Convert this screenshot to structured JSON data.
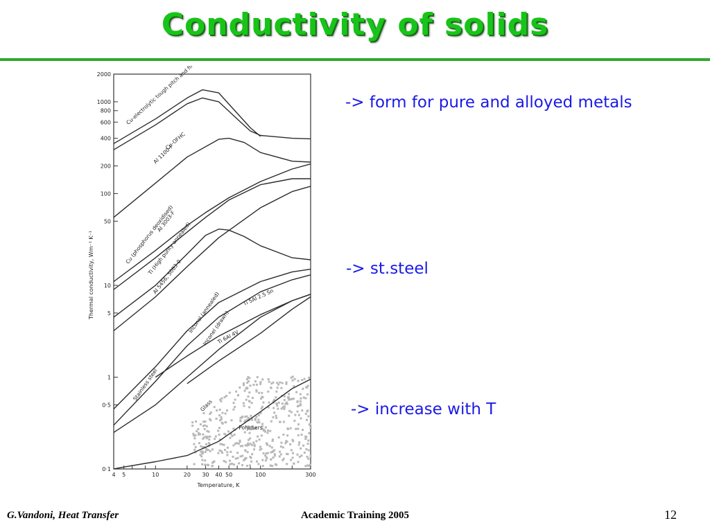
{
  "slide": {
    "title": "Conductivity of solids",
    "bullets": [
      "-> form for pure and alloyed metals",
      "-> st.steel",
      "-> increase with T"
    ],
    "footer_left": "G.Vandoni, Heat Transfer",
    "footer_center": "Academic Training 2005",
    "page_number": "12",
    "title_color": "#18c418",
    "accent_color": "#2ea82e",
    "bullet_color": "#1a1ae6"
  },
  "chart_data": {
    "type": "line",
    "xscale": "log",
    "yscale": "log",
    "xlabel": "Temperature, K",
    "ylabel": "Thermal conductivity, Wm⁻¹ K⁻¹",
    "xlim": [
      4,
      300
    ],
    "ylim": [
      0.1,
      2000
    ],
    "x_ticks": [
      {
        "v": 4,
        "label": "4"
      },
      {
        "v": 5,
        "label": "5"
      },
      {
        "v": 6,
        "label": ""
      },
      {
        "v": 8,
        "label": ""
      },
      {
        "v": 10,
        "label": "10"
      },
      {
        "v": 20,
        "label": "20"
      },
      {
        "v": 30,
        "label": "30"
      },
      {
        "v": 40,
        "label": "40"
      },
      {
        "v": 50,
        "label": "50"
      },
      {
        "v": 60,
        "label": ""
      },
      {
        "v": 80,
        "label": ""
      },
      {
        "v": 100,
        "label": "100"
      },
      {
        "v": 200,
        "label": ""
      },
      {
        "v": 300,
        "label": "300"
      }
    ],
    "y_ticks": [
      {
        "v": 0.1,
        "label": "0·1"
      },
      {
        "v": 0.5,
        "label": "0·5"
      },
      {
        "v": 1,
        "label": "1"
      },
      {
        "v": 5,
        "label": "5"
      },
      {
        "v": 10,
        "label": "10"
      },
      {
        "v": 50,
        "label": "50"
      },
      {
        "v": 100,
        "label": "100"
      },
      {
        "v": 200,
        "label": "200"
      },
      {
        "v": 400,
        "label": "400"
      },
      {
        "v": 600,
        "label": "600"
      },
      {
        "v": 800,
        "label": "800"
      },
      {
        "v": 1000,
        "label": "1000"
      },
      {
        "v": 2000,
        "label": "2000"
      }
    ],
    "series": [
      {
        "name": "Cu-electrolytic tough pitch and fire-refined",
        "x": [
          4,
          10,
          20,
          28,
          40,
          60,
          80,
          100
        ],
        "y": [
          350,
          650,
          1100,
          1350,
          1250,
          750,
          520,
          420
        ]
      },
      {
        "name": "Cu-OFHC",
        "x": [
          4,
          10,
          20,
          28,
          40,
          60,
          80,
          100,
          200,
          300
        ],
        "y": [
          300,
          560,
          950,
          1100,
          1000,
          650,
          480,
          430,
          400,
          395
        ]
      },
      {
        "name": "Al 1100-F",
        "x": [
          4,
          10,
          20,
          40,
          50,
          70,
          100,
          200,
          300
        ],
        "y": [
          55,
          130,
          250,
          390,
          400,
          360,
          280,
          225,
          220
        ]
      },
      {
        "name": "Al 3003-F",
        "x": [
          4,
          10,
          20,
          30,
          50,
          100,
          200,
          300
        ],
        "y": [
          11,
          24,
          45,
          62,
          90,
          135,
          185,
          210
        ]
      },
      {
        "name": "Cu (phosphorus deoxidised)",
        "x": [
          4,
          10,
          20,
          30,
          50,
          100,
          200,
          300
        ],
        "y": [
          9,
          20,
          38,
          55,
          85,
          125,
          145,
          145
        ]
      },
      {
        "name": "Ti (High purity annealed)",
        "x": [
          4,
          10,
          20,
          30,
          40,
          50,
          70,
          100,
          200,
          300
        ],
        "y": [
          4.5,
          10,
          22,
          35,
          41,
          40,
          34,
          27,
          20,
          19
        ]
      },
      {
        "name": "Al 5456, 5083-0",
        "x": [
          4,
          10,
          20,
          40,
          100,
          200,
          300
        ],
        "y": [
          3.2,
          7.5,
          16,
          33,
          70,
          105,
          120
        ]
      },
      {
        "name": "Inconel (annealed)",
        "x": [
          4,
          10,
          20,
          40,
          100,
          200,
          300
        ],
        "y": [
          0.45,
          1.3,
          3.2,
          6.5,
          11,
          14,
          15
        ]
      },
      {
        "name": "Inconel (drawn)",
        "x": [
          4,
          10,
          20,
          40,
          100,
          200,
          300
        ],
        "y": [
          0.3,
          0.9,
          2.2,
          4.5,
          8.5,
          11.5,
          13
        ]
      },
      {
        "name": "Ti 5Al 2.5 Sn",
        "x": [
          10,
          20,
          40,
          100,
          200,
          300
        ],
        "y": [
          1.0,
          1.7,
          2.8,
          4.8,
          6.8,
          8.0
        ]
      },
      {
        "name": "Ti 6Al 4V",
        "x": [
          20,
          40,
          100,
          200,
          300
        ],
        "y": [
          0.85,
          1.5,
          3.0,
          5.5,
          7.5
        ]
      },
      {
        "name": "Stainless steel",
        "x": [
          4,
          10,
          20,
          40,
          100,
          200,
          300
        ],
        "y": [
          0.25,
          0.5,
          1.0,
          2.0,
          4.5,
          6.8,
          8.0
        ]
      },
      {
        "name": "Glass",
        "x": [
          4,
          5,
          10,
          20,
          40,
          100,
          200,
          300
        ],
        "y": [
          0.1,
          0.105,
          0.12,
          0.14,
          0.2,
          0.42,
          0.75,
          0.95
        ]
      },
      {
        "name": "Polymers",
        "x": [],
        "y": []
      }
    ],
    "grid": false,
    "legend": "none"
  }
}
